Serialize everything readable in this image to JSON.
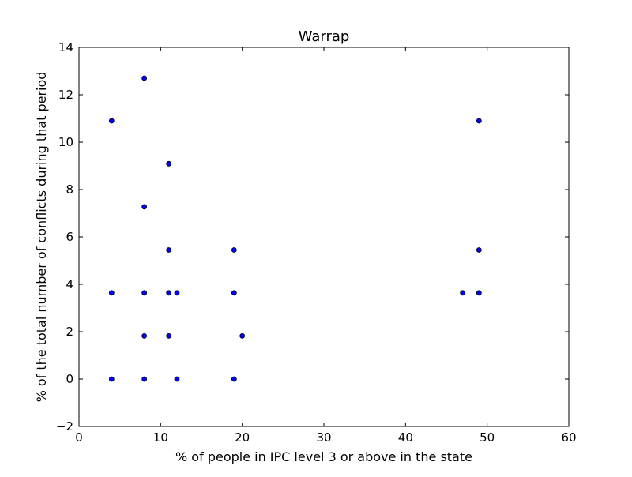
{
  "chart_data": {
    "type": "scatter",
    "title": "Warrap",
    "xlabel": "% of people in IPC level 3 or above in the state",
    "ylabel": "% of the total number of conflicts during that period",
    "xlim": [
      0,
      60
    ],
    "ylim": [
      -2,
      14
    ],
    "xticks": [
      "0",
      "10",
      "20",
      "30",
      "40",
      "50",
      "60"
    ],
    "yticks": [
      "−2",
      "0",
      "2",
      "4",
      "6",
      "8",
      "10",
      "12",
      "14"
    ],
    "grid": false,
    "marker_color": "#0000ff",
    "marker_edge_color": "#000000",
    "points": [
      {
        "x": 4,
        "y": 10.9
      },
      {
        "x": 4,
        "y": 3.64
      },
      {
        "x": 4,
        "y": 0
      },
      {
        "x": 8,
        "y": 12.7
      },
      {
        "x": 8,
        "y": 7.27
      },
      {
        "x": 8,
        "y": 3.64
      },
      {
        "x": 8,
        "y": 1.82
      },
      {
        "x": 8,
        "y": 0
      },
      {
        "x": 11,
        "y": 9.09
      },
      {
        "x": 11,
        "y": 5.45
      },
      {
        "x": 11,
        "y": 3.64
      },
      {
        "x": 11,
        "y": 1.82
      },
      {
        "x": 12,
        "y": 3.64
      },
      {
        "x": 12,
        "y": 0
      },
      {
        "x": 19,
        "y": 5.45
      },
      {
        "x": 19,
        "y": 3.64
      },
      {
        "x": 19,
        "y": 0
      },
      {
        "x": 20,
        "y": 1.82
      },
      {
        "x": 47,
        "y": 3.64
      },
      {
        "x": 49,
        "y": 10.9
      },
      {
        "x": 49,
        "y": 5.45
      },
      {
        "x": 49,
        "y": 3.64
      }
    ]
  }
}
